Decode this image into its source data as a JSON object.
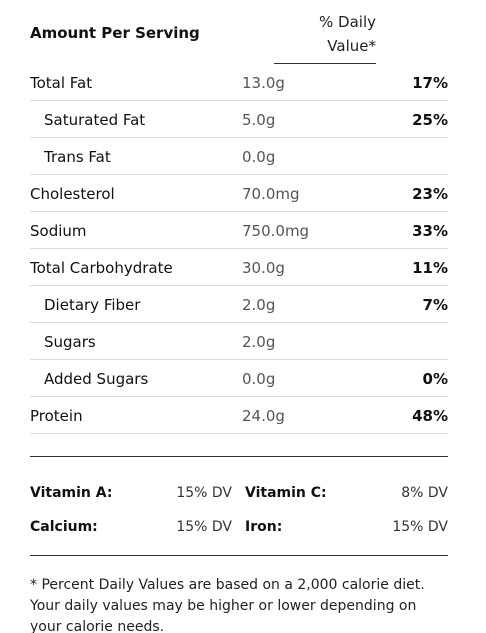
{
  "header": {
    "amount_per_serving": "Amount Per Serving",
    "daily_value_line1": "% Daily",
    "daily_value_line2": "Value*"
  },
  "nutrients": [
    {
      "label": "Total Fat",
      "amount": "13.0g",
      "dv": "17%",
      "sub": false
    },
    {
      "label": "Saturated Fat",
      "amount": "5.0g",
      "dv": "25%",
      "sub": true
    },
    {
      "label": "Trans Fat",
      "amount": "0.0g",
      "dv": "",
      "sub": true
    },
    {
      "label": "Cholesterol",
      "amount": "70.0mg",
      "dv": "23%",
      "sub": false
    },
    {
      "label": "Sodium",
      "amount": "750.0mg",
      "dv": "33%",
      "sub": false
    },
    {
      "label": "Total Carbohydrate",
      "amount": "30.0g",
      "dv": "11%",
      "sub": false
    },
    {
      "label": "Dietary Fiber",
      "amount": "2.0g",
      "dv": "7%",
      "sub": true
    },
    {
      "label": "Sugars",
      "amount": "2.0g",
      "dv": "",
      "sub": true
    },
    {
      "label": "Added Sugars",
      "amount": "0.0g",
      "dv": "0%",
      "sub": true
    },
    {
      "label": "Protein",
      "amount": "24.0g",
      "dv": "48%",
      "sub": false
    }
  ],
  "vitamins": {
    "vitamin_a": {
      "label": "Vitamin A:",
      "value": "15% DV"
    },
    "vitamin_c": {
      "label": "Vitamin C:",
      "value": "8% DV"
    },
    "calcium": {
      "label": "Calcium:",
      "value": "15% DV"
    },
    "iron": {
      "label": "Iron:",
      "value": "15% DV"
    }
  },
  "footnote": "* Percent Daily Values are based on a 2,000 calorie diet. Your daily values may be higher or lower depending on your calorie needs."
}
